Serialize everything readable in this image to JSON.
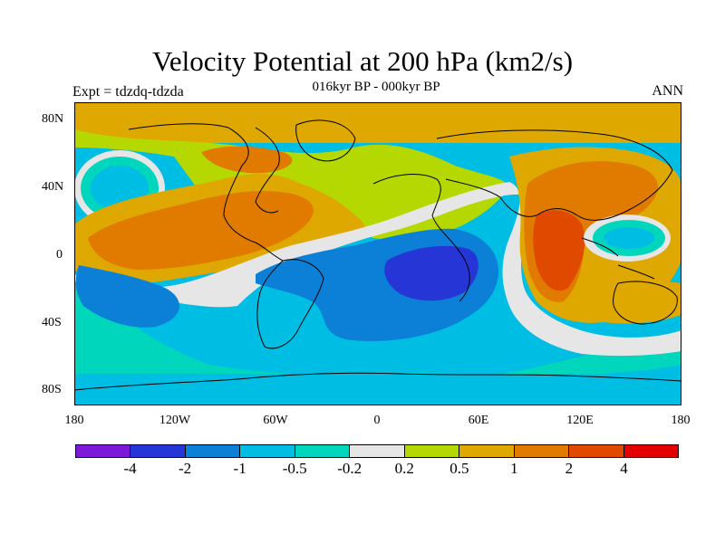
{
  "title": "Velocity Potential at 200 hPa (km2/s)",
  "subtitle": "016kyr BP - 000kyr BP",
  "left_label": "Expt = tdzdq-tdzda",
  "right_label": "ANN",
  "lat_ticks": [
    "80N",
    "40N",
    "0",
    "40S",
    "80S"
  ],
  "lon_ticks": [
    "180",
    "120W",
    "60W",
    "0",
    "60E",
    "120E",
    "180"
  ],
  "colorbar": {
    "labels": [
      "-4",
      "-2",
      "-1",
      "-0.5",
      "-0.2",
      "0.2",
      "0.5",
      "1",
      "2",
      "4"
    ],
    "colors": [
      "#7d19d8",
      "#2535d6",
      "#0c80d6",
      "#00bde3",
      "#00d6bb",
      "#e6e6e6",
      "#b5d900",
      "#dea800",
      "#e07b00",
      "#e04a00",
      "#e30000"
    ]
  }
}
